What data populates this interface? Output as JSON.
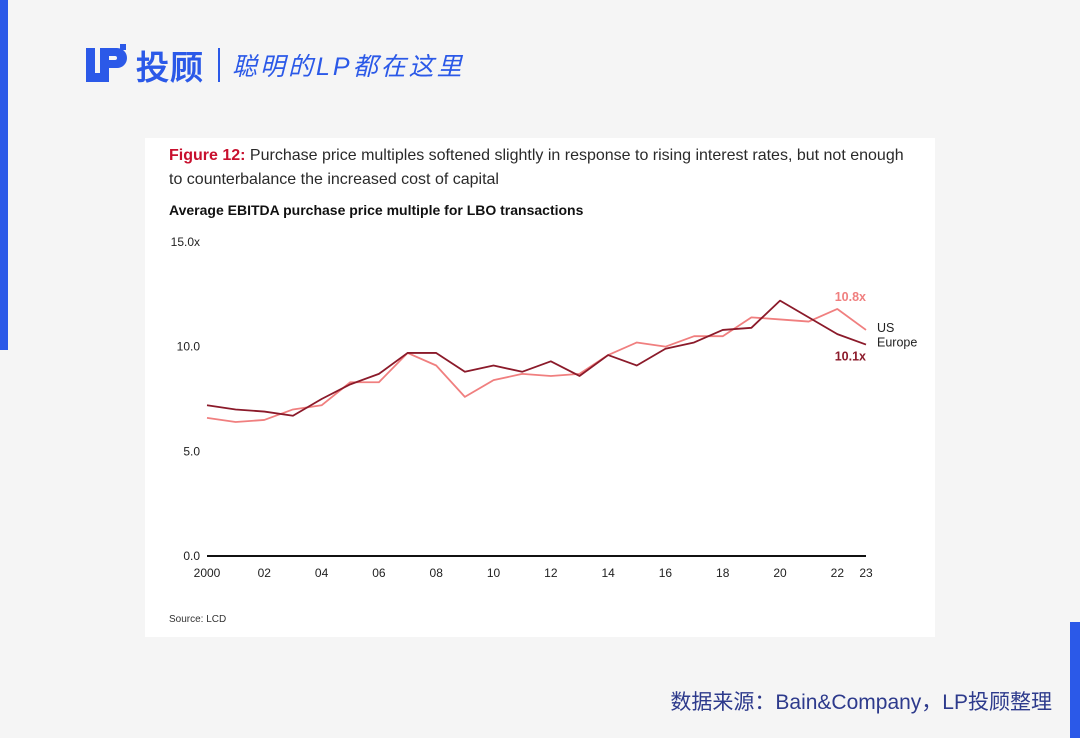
{
  "header": {
    "brand": "投顾",
    "slogan": "聪明的LP都在这里"
  },
  "colors": {
    "accent_blue": "#2b59e8",
    "us": "#f07f7f",
    "europe": "#8b1a2a",
    "figure_label": "#c8102e"
  },
  "figure": {
    "label": "Figure 12:",
    "caption": " Purchase price multiples softened slightly in response to rising interest rates, but not enough to counterbalance the increased cost of capital"
  },
  "chart_data": {
    "type": "line",
    "title": "Average EBITDA purchase price multiple for LBO transactions",
    "x": [
      2000,
      2001,
      2002,
      2003,
      2004,
      2005,
      2006,
      2007,
      2008,
      2009,
      2010,
      2011,
      2012,
      2013,
      2014,
      2015,
      2016,
      2017,
      2018,
      2019,
      2020,
      2021,
      2022,
      2023
    ],
    "x_tick_values": [
      2000,
      2002,
      2004,
      2006,
      2008,
      2010,
      2012,
      2014,
      2016,
      2018,
      2020,
      2022,
      2023
    ],
    "x_tick_labels": [
      "2000",
      "02",
      "04",
      "06",
      "08",
      "10",
      "12",
      "14",
      "16",
      "18",
      "20",
      "22",
      "23"
    ],
    "y_tick_values": [
      0,
      5,
      10,
      15
    ],
    "y_tick_labels": [
      "0.0",
      "5.0",
      "10.0",
      "15.0x"
    ],
    "ylim": [
      0,
      15
    ],
    "xlim": [
      2000,
      2023
    ],
    "grid": false,
    "series": [
      {
        "name": "US",
        "color": "#f07f7f",
        "values": [
          6.6,
          6.4,
          6.5,
          7.0,
          7.2,
          8.3,
          8.3,
          9.7,
          9.1,
          7.6,
          8.4,
          8.7,
          8.6,
          8.7,
          9.6,
          10.2,
          10.0,
          10.5,
          10.5,
          11.4,
          11.3,
          11.2,
          11.8,
          10.8
        ],
        "end_label": "10.8x"
      },
      {
        "name": "Europe",
        "color": "#8b1a2a",
        "values": [
          7.2,
          7.0,
          6.9,
          6.7,
          7.5,
          8.2,
          8.7,
          9.7,
          9.7,
          8.8,
          9.1,
          8.8,
          9.3,
          8.6,
          9.6,
          9.1,
          9.9,
          10.2,
          10.8,
          10.9,
          12.2,
          11.4,
          10.6,
          10.1
        ],
        "end_label": "10.1x"
      }
    ],
    "source": "Source: LCD"
  },
  "footer": {
    "text": "数据来源：Bain&Company，LP投顾整理"
  }
}
